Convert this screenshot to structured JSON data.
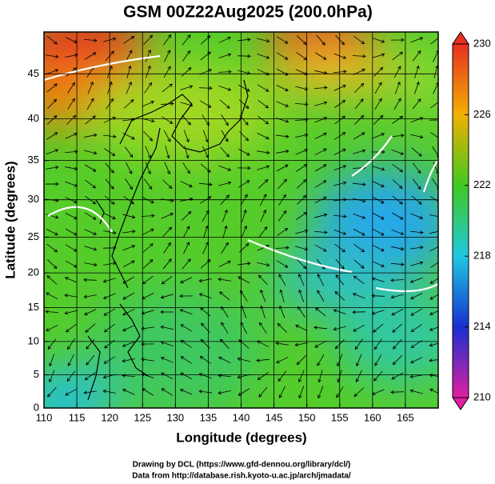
{
  "chart_data": {
    "type": "map",
    "title": "GSM 00Z22Aug2025 (200.0hPa)",
    "xlabel": "Longitude (degrees)",
    "ylabel": "Latitude  (degrees)",
    "xlim": [
      110,
      170
    ],
    "ylim": [
      0,
      49.3
    ],
    "xticks": [
      110,
      115,
      120,
      125,
      130,
      135,
      140,
      145,
      150,
      155,
      160,
      165
    ],
    "yticks": [
      0,
      5,
      10,
      15,
      20,
      25,
      30,
      35,
      40,
      45
    ],
    "y_projection": "mercator",
    "grid": true,
    "colorbar": {
      "lim": [
        210,
        230
      ],
      "ticks": [
        210,
        214,
        218,
        222,
        226,
        230
      ],
      "colors": [
        "#e020a0",
        "#1830d0",
        "#20c8e0",
        "#40c820",
        "#f0b000",
        "#e83020"
      ]
    },
    "footnotes": [
      "Drawing by DCL (https://www.gfd-dennou.org/library/dcl/)",
      "Data from http://database.rish.kyoto-u.ac.jp/arch/jmadata/"
    ]
  }
}
